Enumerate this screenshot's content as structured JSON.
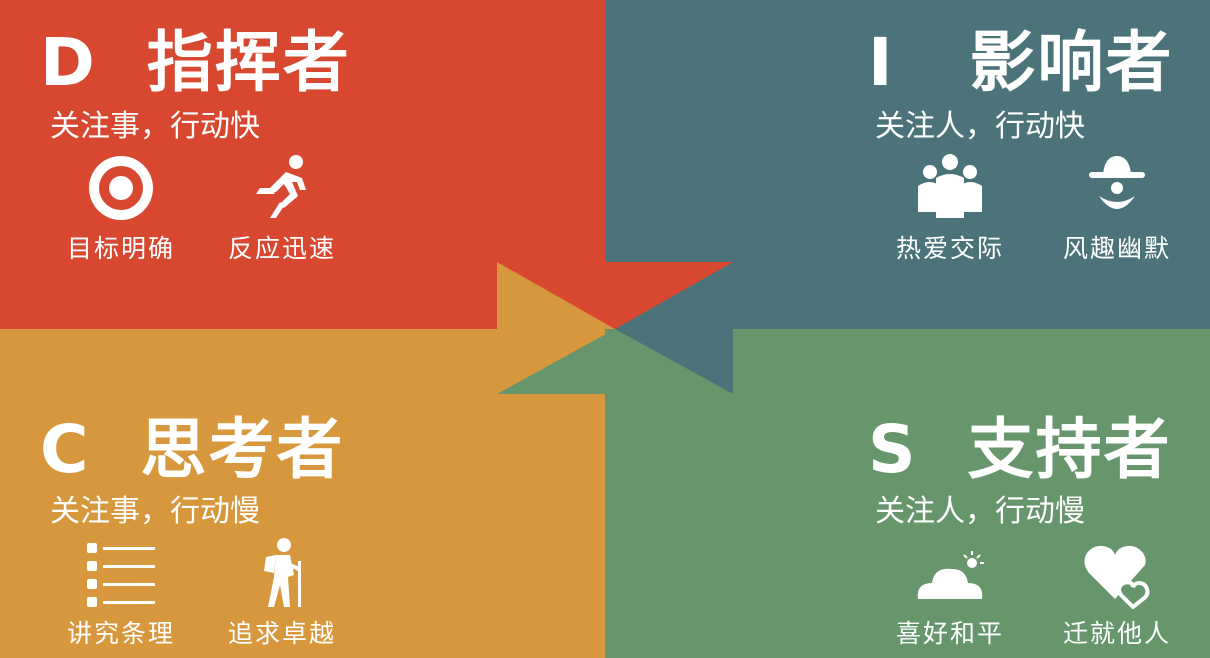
{
  "colors": {
    "d": "#d84831",
    "i": "#4c727a",
    "c": "#d7973c",
    "s": "#67956c",
    "text": "#ffffff"
  },
  "quadrants": {
    "d": {
      "letter": "D",
      "title": "指挥者",
      "subtitle": "关注事，行动快",
      "traits": [
        {
          "label": "目标明确",
          "icon": "target-icon"
        },
        {
          "label": "反应迅速",
          "icon": "running-person-icon"
        }
      ]
    },
    "i": {
      "letter": "I",
      "title": "影响者",
      "subtitle": "关注人，行动快",
      "traits": [
        {
          "label": "热爱交际",
          "icon": "group-of-people-icon"
        },
        {
          "label": "风趣幽默",
          "icon": "clown-face-icon"
        }
      ]
    },
    "c": {
      "letter": "C",
      "title": "思考者",
      "subtitle": "关注事，行动慢",
      "traits": [
        {
          "label": "讲究条理",
          "icon": "bullet-list-icon"
        },
        {
          "label": "追求卓越",
          "icon": "hiker-icon"
        }
      ]
    },
    "s": {
      "letter": "S",
      "title": "支持者",
      "subtitle": "关注人，行动慢",
      "traits": [
        {
          "label": "喜好和平",
          "icon": "cloud-sun-icon"
        },
        {
          "label": "迁就他人",
          "icon": "two-hearts-icon"
        }
      ]
    }
  }
}
